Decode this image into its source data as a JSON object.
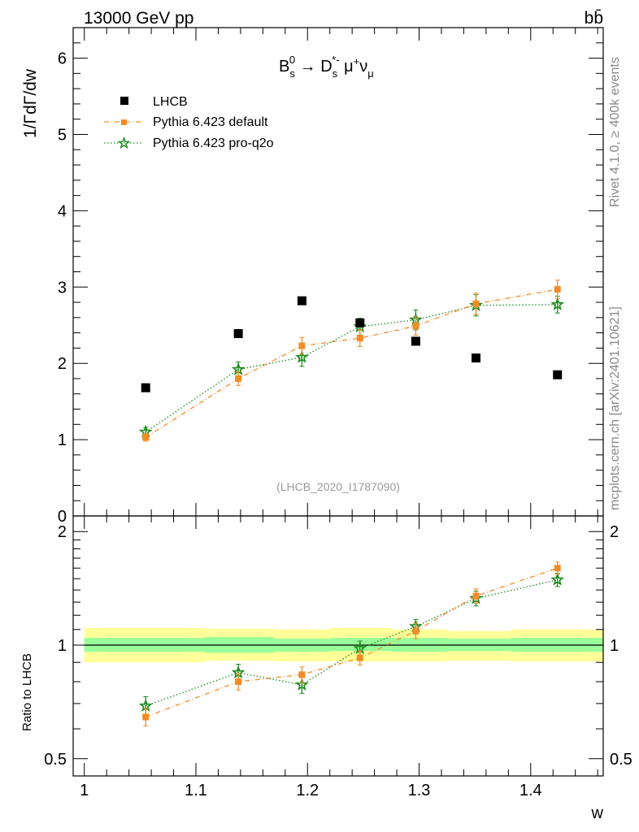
{
  "header": {
    "energy_label": "13000 GeV pp",
    "process_label": "bb̄"
  },
  "side_labels": {
    "rivet": "Rivet 4.1.0, ≥ 400k events",
    "mcplots": "mcplots.cern.ch [arXiv:2401.10621]"
  },
  "chart_data": [
    {
      "type": "scatter",
      "panel": "main",
      "title": "B_s^0 → D_s^*- μ+ ν_μ",
      "ylabel": "1/ΓdΓ/dw",
      "xlabel": "",
      "analysis_id": "(LHCB_2020_I1787090)",
      "xlim": [
        0.99,
        1.465
      ],
      "ylim": [
        0,
        6.4
      ],
      "yticks": [
        0,
        1,
        2,
        3,
        4,
        5,
        6
      ],
      "legend_position": "top-left",
      "series": [
        {
          "name": "LHCB",
          "color": "#000000",
          "marker": "square",
          "x": [
            1.055,
            1.138,
            1.195,
            1.247,
            1.297,
            1.351,
            1.424
          ],
          "values": [
            1.68,
            2.39,
            2.82,
            2.53,
            2.29,
            2.07,
            1.85
          ],
          "errors": [
            0.02,
            0.02,
            0.02,
            0.02,
            0.02,
            0.02,
            0.02
          ]
        },
        {
          "name": "Pythia 6.423 default",
          "color": "#f28c28",
          "marker": "square-small",
          "line": "dashdot",
          "x": [
            1.055,
            1.138,
            1.195,
            1.247,
            1.297,
            1.351,
            1.424
          ],
          "values": [
            1.03,
            1.8,
            2.23,
            2.33,
            2.49,
            2.78,
            2.97
          ],
          "errors": [
            0.05,
            0.09,
            0.11,
            0.11,
            0.12,
            0.14,
            0.12
          ]
        },
        {
          "name": "Pythia 6.423 pro-q2o",
          "color": "#1a8a1a",
          "marker": "star",
          "line": "dotted",
          "x": [
            1.055,
            1.138,
            1.195,
            1.247,
            1.297,
            1.351,
            1.424
          ],
          "values": [
            1.1,
            1.92,
            2.08,
            2.48,
            2.57,
            2.76,
            2.77
          ],
          "errors": [
            0.06,
            0.1,
            0.12,
            0.11,
            0.13,
            0.14,
            0.11
          ]
        }
      ]
    },
    {
      "type": "scatter",
      "panel": "ratio",
      "ylabel": "Ratio to LHCB",
      "xlabel": "w",
      "xlim": [
        0.99,
        1.465
      ],
      "ylim": [
        0.45,
        2.2
      ],
      "yscale": "log",
      "yticks": [
        0.5,
        1,
        2
      ],
      "xticks": [
        1,
        1.1,
        1.2,
        1.3,
        1.4
      ],
      "xtick_labels": [
        "1",
        "1.1",
        "1.2",
        "1.3",
        "1.4"
      ],
      "ytick_labels": [
        "0.5",
        "1",
        "2"
      ],
      "data_bands": {
        "x_edges": [
          1.0,
          1.108,
          1.17,
          1.22,
          1.275,
          1.325,
          1.382,
          1.465
        ],
        "inner_low": [
          0.96,
          0.955,
          0.96,
          0.965,
          0.96,
          0.965,
          0.96
        ],
        "inner_high": [
          1.045,
          1.05,
          1.04,
          1.045,
          1.045,
          1.04,
          1.045
        ],
        "outer_low": [
          0.9,
          0.91,
          0.905,
          0.905,
          0.905,
          0.91,
          0.905
        ],
        "outer_high": [
          1.11,
          1.105,
          1.1,
          1.11,
          1.1,
          1.09,
          1.1
        ],
        "inner_color": "#99ff99",
        "outer_color": "#ffff99"
      },
      "series": [
        {
          "name": "Pythia 6.423 default",
          "color": "#f28c28",
          "marker": "square-small",
          "line": "dashdot",
          "x": [
            1.055,
            1.138,
            1.195,
            1.247,
            1.297,
            1.351,
            1.424
          ],
          "values": [
            0.645,
            0.8,
            0.835,
            0.925,
            1.09,
            1.35,
            1.6
          ],
          "errors": [
            0.035,
            0.04,
            0.04,
            0.04,
            0.05,
            0.06,
            0.06
          ]
        },
        {
          "name": "Pythia 6.423 pro-q2o",
          "color": "#1a8a1a",
          "marker": "star",
          "line": "dotted",
          "x": [
            1.055,
            1.138,
            1.195,
            1.247,
            1.297,
            1.351,
            1.424
          ],
          "values": [
            0.69,
            0.845,
            0.785,
            0.98,
            1.12,
            1.33,
            1.49
          ],
          "errors": [
            0.04,
            0.045,
            0.04,
            0.045,
            0.05,
            0.06,
            0.06
          ]
        }
      ]
    }
  ]
}
